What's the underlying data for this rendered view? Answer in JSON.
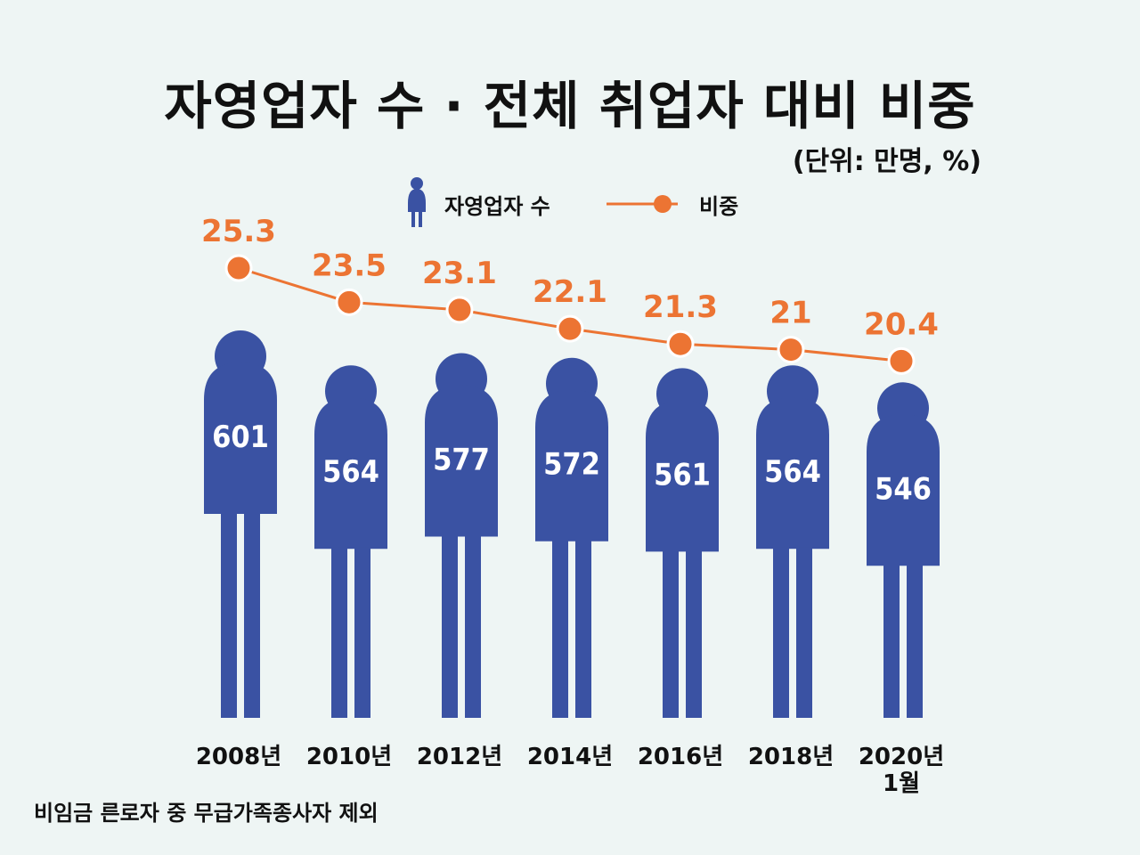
{
  "title": "자영업자 수 · 전체 취업자 대비 비중",
  "unit_note": "(단위: 만명, %)",
  "footnote": "비임금 른로자 중 무급가족종사자 제외",
  "colors": {
    "background": "#eef5f4",
    "person": "#3a52a3",
    "line": "#ec7433",
    "text": "#111111",
    "count_text": "#ffffff"
  },
  "chart_data": {
    "type": "bar",
    "categories": [
      "2008년",
      "2010년",
      "2012년",
      "2014년",
      "2016년",
      "2018년",
      "2020년\n1월"
    ],
    "series": [
      {
        "name": "자영업자 수",
        "type": "bar",
        "values": [
          601,
          564,
          577,
          572,
          561,
          564,
          546
        ],
        "color": "#3a52a3"
      },
      {
        "name": "비중",
        "type": "line",
        "values": [
          25.3,
          23.5,
          23.1,
          22.1,
          21.3,
          21,
          20.4
        ],
        "color": "#ec7433"
      }
    ],
    "data_labels": {
      "count": [
        "601",
        "564",
        "577",
        "572",
        "561",
        "564",
        "546"
      ],
      "ratio": [
        "25.3",
        "23.5",
        "23.1",
        "22.1",
        "21.3",
        "21",
        "20.4"
      ]
    },
    "legend_position": "top-center",
    "grid": false
  }
}
